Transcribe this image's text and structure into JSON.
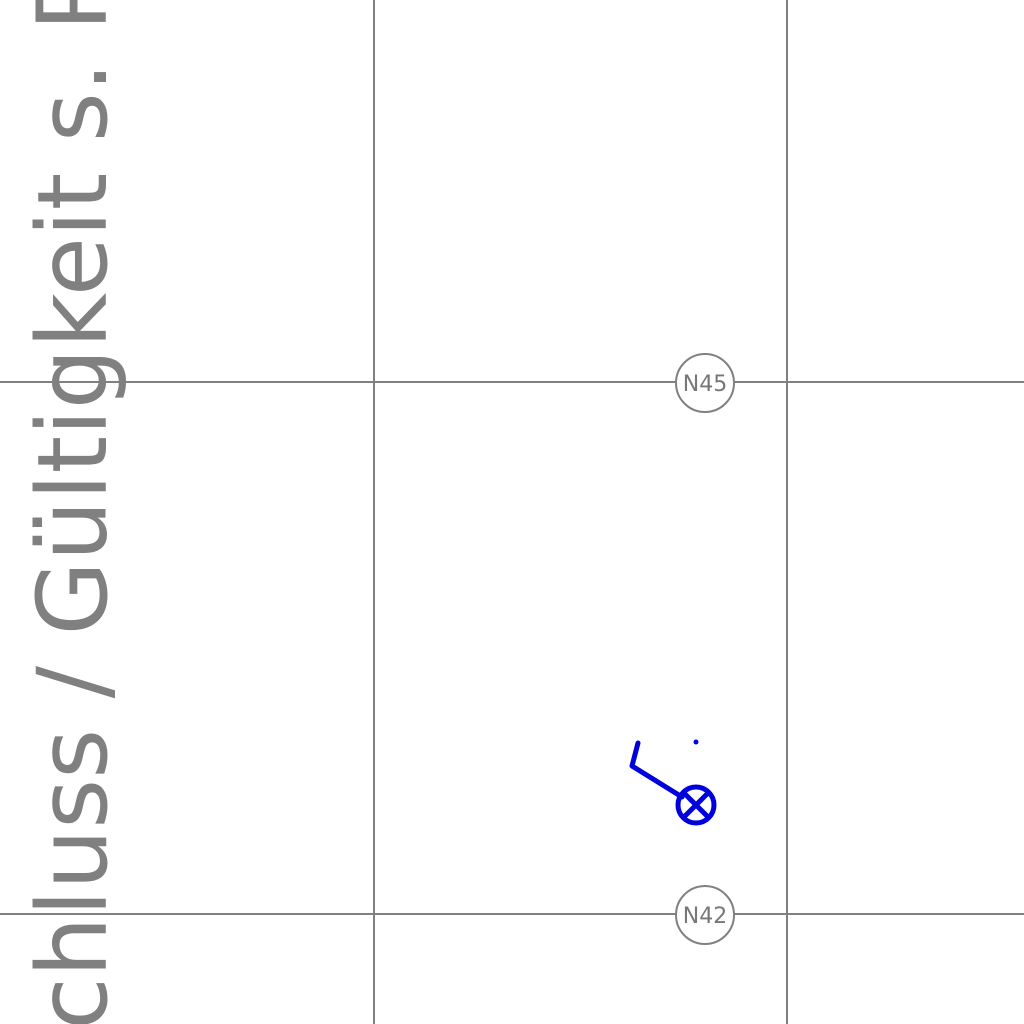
{
  "sheet": {
    "vertical_note": "chluss / Gültigkeit s. Plannu"
  },
  "grid": {
    "labels": [
      "N45",
      "N42"
    ],
    "line_color": "#808080",
    "label_color": "#777777"
  },
  "symbol": {
    "color": "#0000dd",
    "icon": "valve-cross-circle-icon"
  }
}
